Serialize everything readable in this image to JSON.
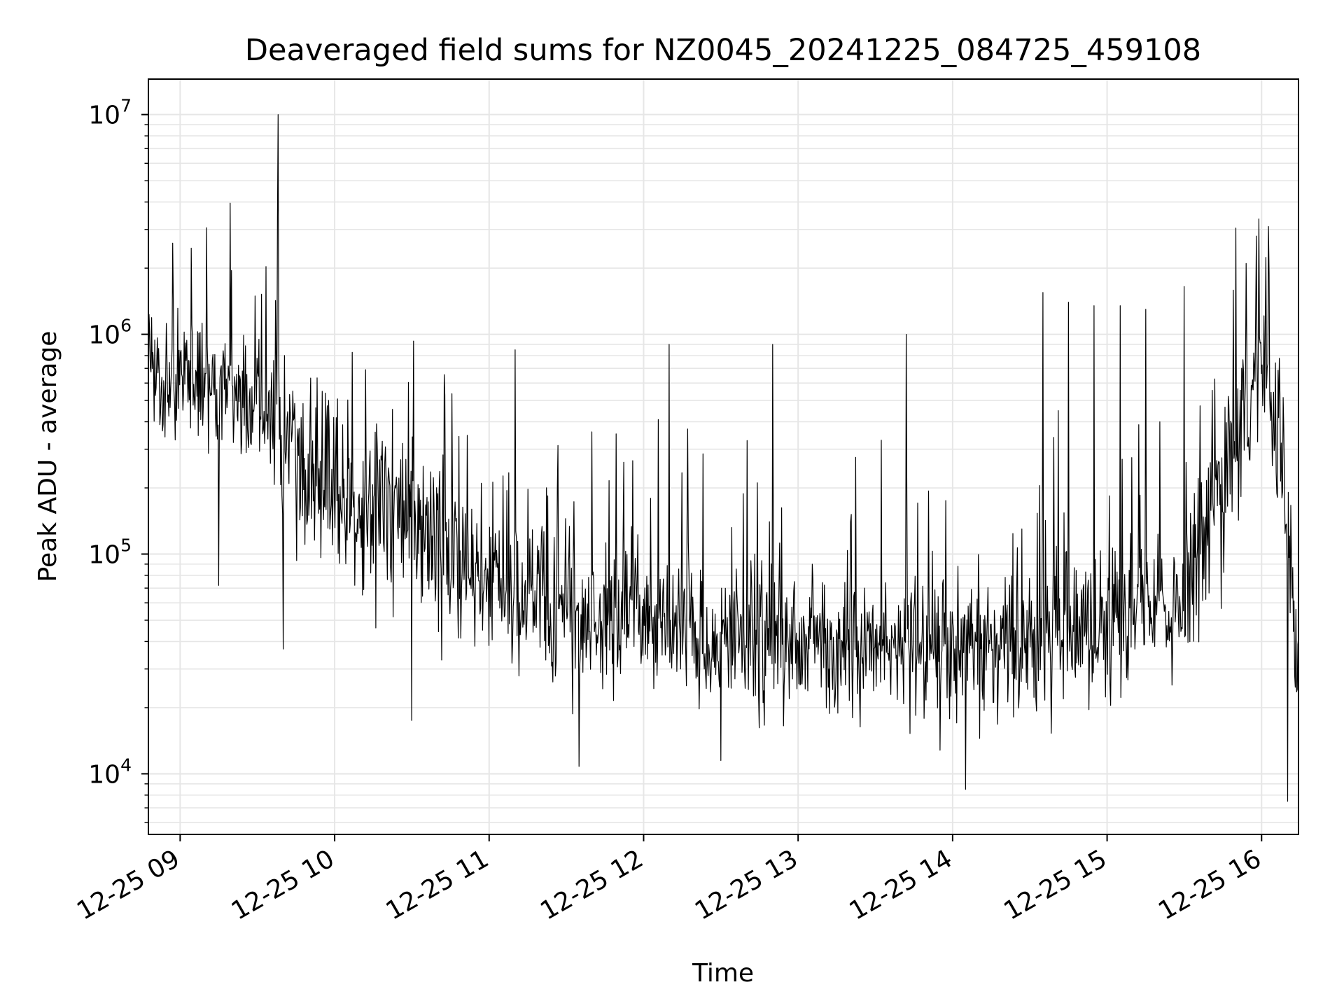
{
  "chart_data": {
    "type": "line",
    "title": "Deaveraged field sums for NZ0045_20241225_084725_459108",
    "xlabel": "Time",
    "ylabel": "Peak ADU - average",
    "yscale": "log",
    "ylim": [
      5300,
      14500000
    ],
    "xlim": [
      "12-25 08:47:40",
      "12-25 16:14:20"
    ],
    "x_ticks": [
      {
        "t": "12-25 09:00",
        "label": "12-25 09"
      },
      {
        "t": "12-25 10:00",
        "label": "12-25 10"
      },
      {
        "t": "12-25 11:00",
        "label": "12-25 11"
      },
      {
        "t": "12-25 12:00",
        "label": "12-25 12"
      },
      {
        "t": "12-25 13:00",
        "label": "12-25 13"
      },
      {
        "t": "12-25 14:00",
        "label": "12-25 14"
      },
      {
        "t": "12-25 15:00",
        "label": "12-25 15"
      },
      {
        "t": "12-25 16:00",
        "label": "12-25 16"
      }
    ],
    "y_ticks": [
      {
        "value": 10000,
        "base": "10",
        "exp": "4"
      },
      {
        "value": 100000,
        "base": "10",
        "exp": "5"
      },
      {
        "value": 1000000,
        "base": "10",
        "exp": "6"
      },
      {
        "value": 10000000,
        "base": "10",
        "exp": "7"
      }
    ],
    "grid": true,
    "line_color": "#000000",
    "grid_color": "#e6e6e6",
    "series": [
      {
        "name": "",
        "profile": [
          {
            "t": "12-25 08:47",
            "y": 600000
          },
          {
            "t": "12-25 09:00",
            "y": 750000
          },
          {
            "t": "12-25 09:20",
            "y": 550000
          },
          {
            "t": "12-25 09:40",
            "y": 350000
          },
          {
            "t": "12-25 10:00",
            "y": 180000
          },
          {
            "t": "12-25 10:30",
            "y": 130000
          },
          {
            "t": "12-25 11:00",
            "y": 75000
          },
          {
            "t": "12-25 11:30",
            "y": 55000
          },
          {
            "t": "12-25 12:00",
            "y": 50000
          },
          {
            "t": "12-25 12:30",
            "y": 42000
          },
          {
            "t": "12-25 13:00",
            "y": 40000
          },
          {
            "t": "12-25 13:30",
            "y": 38000
          },
          {
            "t": "12-25 14:00",
            "y": 35000
          },
          {
            "t": "12-25 14:30",
            "y": 45000
          },
          {
            "t": "12-25 15:00",
            "y": 48000
          },
          {
            "t": "12-25 15:30",
            "y": 70000
          },
          {
            "t": "12-25 15:50",
            "y": 300000
          },
          {
            "t": "12-25 16:00",
            "y": 700000
          },
          {
            "t": "12-25 16:08",
            "y": 300000
          },
          {
            "t": "12-25 16:14",
            "y": 25000
          }
        ],
        "peaks": [
          {
            "t": "12-25 09:38",
            "y": 10000000
          },
          {
            "t": "12-25 08:57",
            "y": 2600000
          },
          {
            "t": "12-25 09:20",
            "y": 1950000
          },
          {
            "t": "12-25 15:59",
            "y": 3350000
          },
          {
            "t": "12-25 15:58",
            "y": 2800000
          },
          {
            "t": "12-25 15:54",
            "y": 2100000
          },
          {
            "t": "12-25 16:03",
            "y": 1900000
          },
          {
            "t": "12-25 15:30",
            "y": 1650000
          },
          {
            "t": "12-25 14:35",
            "y": 1550000
          },
          {
            "t": "12-25 14:45",
            "y": 1400000
          },
          {
            "t": "12-25 14:55",
            "y": 1350000
          },
          {
            "t": "12-25 15:05",
            "y": 1350000
          },
          {
            "t": "12-25 15:15",
            "y": 1300000
          },
          {
            "t": "12-25 12:50",
            "y": 900000
          },
          {
            "t": "12-25 13:42",
            "y": 1000000
          },
          {
            "t": "12-25 11:10",
            "y": 850000
          },
          {
            "t": "12-25 12:10",
            "y": 900000
          }
        ],
        "troughs": [
          {
            "t": "12-25 14:05",
            "y": 8500
          },
          {
            "t": "12-25 16:10",
            "y": 7500
          },
          {
            "t": "12-25 11:35",
            "y": 10800
          },
          {
            "t": "12-25 12:30",
            "y": 11500
          },
          {
            "t": "12-25 09:15",
            "y": 72000
          },
          {
            "t": "12-25 09:40",
            "y": 37000
          },
          {
            "t": "12-25 10:30",
            "y": 17500
          }
        ]
      }
    ]
  }
}
